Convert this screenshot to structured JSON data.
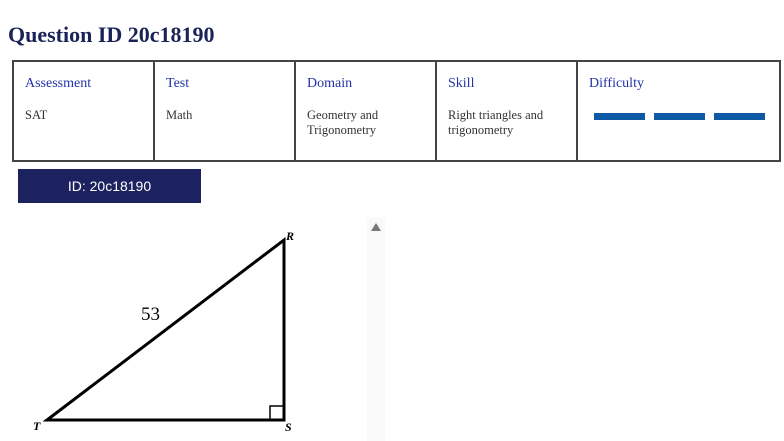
{
  "title": "Question ID 20c18190",
  "table": {
    "headers": [
      "Assessment",
      "Test",
      "Domain",
      "Skill",
      "Difficulty"
    ],
    "values": [
      "SAT",
      "Math",
      "Geometry and Trigonometry",
      "Right triangles and trigonometry"
    ],
    "difficulty": {
      "filled_bars": 3,
      "total_bars": 3,
      "color": "#0f5aa6"
    }
  },
  "id_button": "ID: 20c18190",
  "figure": {
    "vertex_r": "R",
    "vertex_t": "T",
    "vertex_s": "S",
    "hypotenuse_label": "53"
  }
}
